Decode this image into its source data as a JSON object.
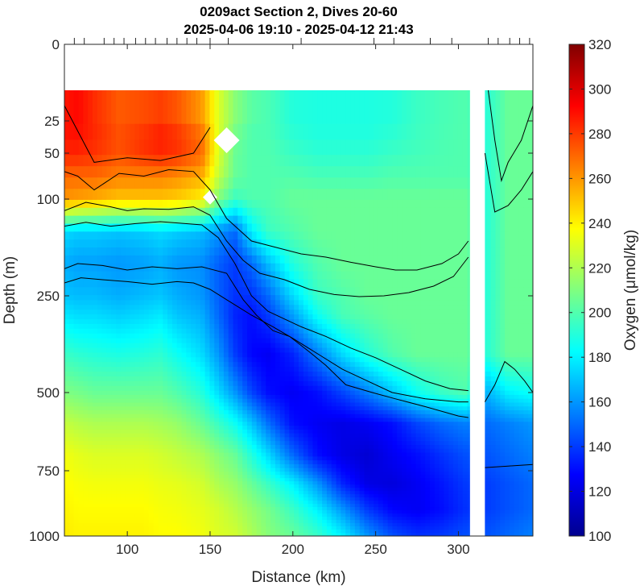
{
  "chart_data": {
    "type": "heatmap",
    "title": "0209act Section 2, Dives 20-60",
    "subtitle": "2025-04-06 19:10 - 2025-04-12 21:43",
    "xlabel": "Distance (km)",
    "ylabel": "Depth (m)",
    "colorbar_label": "Oxygen (μmol/kg)",
    "xlim": [
      62,
      345
    ],
    "x_ticks": [
      100,
      150,
      200,
      250,
      300
    ],
    "y_ticks": [
      0,
      25,
      50,
      100,
      250,
      500,
      750,
      1000
    ],
    "y_scale": "stretched (non-linear)",
    "colorbar": {
      "min": 100,
      "max": 320,
      "ticks": [
        100,
        120,
        140,
        160,
        180,
        200,
        220,
        240,
        260,
        280,
        300,
        320
      ],
      "colormap": "jet"
    },
    "no_data_top_depth": 15,
    "gap_x": [
      307,
      316
    ],
    "dive_ticks_km": [
      68,
      74,
      86,
      92,
      98,
      105,
      111,
      117,
      124,
      130,
      136,
      142,
      150,
      161,
      205,
      249,
      261,
      283,
      296,
      318,
      324,
      331,
      337,
      343
    ],
    "field": {
      "x": [
        62,
        70,
        80,
        95,
        110,
        120,
        130,
        145,
        155,
        165,
        175,
        185,
        200,
        215,
        230,
        245,
        260,
        275,
        290,
        305,
        316,
        330,
        345
      ],
      "depth": [
        15,
        25,
        50,
        75,
        100,
        150,
        200,
        250,
        300,
        400,
        500,
        600,
        700,
        800,
        900,
        1000
      ],
      "oxygen": [
        [
          285,
          290,
          280,
          270,
          270,
          270,
          265,
          250,
          230,
          215,
          205,
          200,
          190,
          190,
          190,
          190,
          190,
          195,
          198,
          200,
          190,
          205,
          205
        ],
        [
          290,
          292,
          285,
          275,
          280,
          285,
          280,
          265,
          230,
          210,
          200,
          198,
          190,
          188,
          188,
          188,
          190,
          195,
          198,
          200,
          190,
          205,
          205
        ],
        [
          285,
          285,
          282,
          275,
          282,
          285,
          282,
          270,
          230,
          205,
          200,
          200,
          195,
          192,
          192,
          192,
          195,
          197,
          199,
          200,
          190,
          205,
          205
        ],
        [
          270,
          270,
          270,
          265,
          265,
          265,
          262,
          255,
          225,
          205,
          200,
          200,
          200,
          198,
          198,
          198,
          200,
          200,
          200,
          200,
          190,
          205,
          205
        ],
        [
          260,
          258,
          255,
          250,
          250,
          250,
          248,
          240,
          210,
          195,
          200,
          200,
          205,
          205,
          205,
          205,
          205,
          205,
          205,
          205,
          190,
          205,
          205
        ],
        [
          175,
          172,
          172,
          170,
          172,
          175,
          172,
          168,
          160,
          150,
          180,
          195,
          200,
          205,
          205,
          205,
          205,
          205,
          205,
          205,
          190,
          205,
          205
        ],
        [
          165,
          162,
          162,
          160,
          162,
          165,
          160,
          158,
          148,
          140,
          150,
          168,
          190,
          200,
          205,
          205,
          205,
          205,
          205,
          205,
          190,
          205,
          205
        ],
        [
          170,
          168,
          168,
          165,
          168,
          170,
          165,
          160,
          148,
          138,
          138,
          150,
          175,
          195,
          200,
          205,
          205,
          205,
          205,
          205,
          190,
          205,
          205
        ],
        [
          178,
          175,
          175,
          172,
          175,
          178,
          170,
          165,
          150,
          135,
          130,
          140,
          162,
          185,
          198,
          202,
          205,
          205,
          205,
          205,
          190,
          205,
          205
        ],
        [
          195,
          192,
          190,
          188,
          190,
          192,
          185,
          175,
          160,
          140,
          128,
          125,
          135,
          155,
          175,
          190,
          200,
          205,
          205,
          205,
          190,
          205,
          205
        ],
        [
          210,
          208,
          205,
          205,
          205,
          205,
          200,
          190,
          175,
          160,
          142,
          130,
          125,
          130,
          142,
          155,
          170,
          185,
          195,
          200,
          165,
          180,
          185
        ],
        [
          225,
          222,
          220,
          220,
          220,
          218,
          215,
          205,
          195,
          185,
          170,
          152,
          130,
          125,
          122,
          125,
          130,
          142,
          150,
          155,
          150,
          155,
          160
        ],
        [
          235,
          232,
          230,
          230,
          230,
          228,
          225,
          220,
          212,
          205,
          190,
          175,
          150,
          130,
          122,
          118,
          125,
          130,
          138,
          145,
          145,
          150,
          155
        ],
        [
          238,
          236,
          235,
          235,
          235,
          233,
          232,
          228,
          220,
          215,
          205,
          195,
          180,
          160,
          135,
          122,
          120,
          125,
          132,
          140,
          140,
          145,
          150
        ],
        [
          240,
          238,
          238,
          238,
          238,
          236,
          235,
          232,
          228,
          222,
          215,
          208,
          195,
          180,
          160,
          140,
          128,
          125,
          130,
          138,
          140,
          145,
          150
        ],
        [
          242,
          240,
          240,
          240,
          240,
          238,
          238,
          235,
          230,
          228,
          220,
          212,
          205,
          195,
          180,
          160,
          145,
          138,
          140,
          145,
          145,
          150,
          155
        ]
      ]
    },
    "contours": [
      [
        [
          62,
          70
        ],
        [
          70,
          75
        ],
        [
          80,
          90
        ],
        [
          95,
          72
        ],
        [
          110,
          75
        ],
        [
          125,
          68
        ],
        [
          140,
          70
        ],
        [
          150,
          90
        ],
        [
          160,
          130
        ],
        [
          175,
          165
        ],
        [
          190,
          175
        ],
        [
          205,
          185
        ],
        [
          220,
          190
        ],
        [
          235,
          198
        ],
        [
          250,
          205
        ],
        [
          262,
          210
        ],
        [
          275,
          210
        ],
        [
          290,
          200
        ],
        [
          300,
          185
        ],
        [
          306,
          165
        ]
      ],
      [
        [
          62,
          118
        ],
        [
          75,
          105
        ],
        [
          90,
          112
        ],
        [
          100,
          118
        ],
        [
          110,
          115
        ],
        [
          125,
          116
        ],
        [
          140,
          112
        ],
        [
          150,
          125
        ],
        [
          160,
          165
        ],
        [
          170,
          195
        ],
        [
          180,
          215
        ],
        [
          195,
          225
        ],
        [
          210,
          240
        ],
        [
          225,
          248
        ],
        [
          240,
          252
        ],
        [
          255,
          250
        ],
        [
          270,
          245
        ],
        [
          285,
          235
        ],
        [
          297,
          220
        ],
        [
          306,
          190
        ]
      ],
      [
        [
          62,
          142
        ],
        [
          75,
          136
        ],
        [
          90,
          142
        ],
        [
          105,
          138
        ],
        [
          120,
          135
        ],
        [
          135,
          138
        ],
        [
          145,
          140
        ],
        [
          155,
          160
        ],
        [
          165,
          200
        ],
        [
          175,
          250
        ],
        [
          185,
          290
        ],
        [
          195,
          310
        ],
        [
          205,
          330
        ],
        [
          220,
          355
        ],
        [
          235,
          385
        ],
        [
          250,
          410
        ],
        [
          265,
          440
        ],
        [
          280,
          470
        ],
        [
          295,
          490
        ],
        [
          306,
          495
        ]
      ],
      [
        [
          62,
          208
        ],
        [
          70,
          200
        ],
        [
          85,
          203
        ],
        [
          100,
          210
        ],
        [
          115,
          205
        ],
        [
          130,
          208
        ],
        [
          145,
          205
        ],
        [
          160,
          215
        ],
        [
          170,
          260
        ],
        [
          178,
          300
        ],
        [
          188,
          340
        ],
        [
          198,
          355
        ],
        [
          210,
          395
        ],
        [
          220,
          430
        ],
        [
          232,
          480
        ],
        [
          248,
          500
        ],
        [
          262,
          520
        ],
        [
          280,
          545
        ],
        [
          300,
          575
        ],
        [
          306,
          580
        ]
      ],
      [
        [
          62,
          230
        ],
        [
          72,
          222
        ],
        [
          85,
          225
        ],
        [
          100,
          228
        ],
        [
          115,
          232
        ],
        [
          130,
          228
        ],
        [
          140,
          230
        ],
        [
          150,
          240
        ],
        [
          160,
          260
        ],
        [
          175,
          300
        ],
        [
          188,
          330
        ],
        [
          200,
          360
        ],
        [
          215,
          400
        ],
        [
          230,
          440
        ],
        [
          245,
          470
        ],
        [
          260,
          500
        ],
        [
          280,
          520
        ],
        [
          300,
          530
        ],
        [
          306,
          530
        ]
      ],
      [
        [
          62,
          20
        ],
        [
          80,
          60
        ],
        [
          100,
          55
        ],
        [
          120,
          58
        ],
        [
          140,
          50
        ],
        [
          150,
          30
        ]
      ],
      [
        [
          316,
          740
        ],
        [
          330,
          735
        ],
        [
          345,
          730
        ]
      ],
      [
        [
          316,
          530
        ],
        [
          322,
          480
        ],
        [
          328,
          420
        ],
        [
          334,
          440
        ],
        [
          340,
          470
        ],
        [
          345,
          500
        ]
      ],
      [
        [
          318,
          15
        ],
        [
          322,
          40
        ],
        [
          326,
          80
        ],
        [
          330,
          60
        ],
        [
          338,
          40
        ],
        [
          345,
          20
        ]
      ],
      [
        [
          316,
          50
        ],
        [
          322,
          120
        ],
        [
          330,
          110
        ],
        [
          338,
          90
        ],
        [
          345,
          70
        ]
      ]
    ]
  }
}
